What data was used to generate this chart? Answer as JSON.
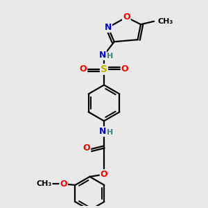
{
  "bg_color": "#e9e9e9",
  "atom_colors": {
    "N": "#0000cc",
    "O": "#ff0000",
    "S": "#b8b800",
    "C": "#000000",
    "H": "#408080"
  },
  "bond_color": "#000000",
  "bond_width": 1.6,
  "figsize": [
    3.0,
    3.0
  ],
  "dpi": 100
}
